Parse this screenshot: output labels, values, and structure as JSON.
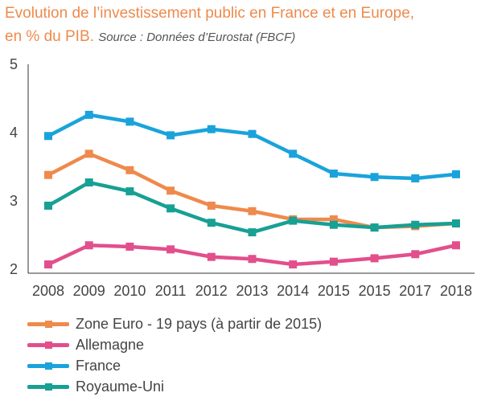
{
  "header": {
    "title_main": "Evolution de l’investissement public en France et en Europe,",
    "title_line2": "en % du PIB.",
    "source": "Source : Données d’Eurostat (FBCF)"
  },
  "chart_data": {
    "type": "line",
    "title": "Evolution de l’investissement public en France et en Europe, en % du PIB.",
    "source": "Source : Données d’Eurostat (FBCF)",
    "categories": [
      "2008",
      "2009",
      "2010",
      "2011",
      "2012",
      "2013",
      "2014",
      "2015",
      "2015",
      "2017",
      "2018"
    ],
    "yticks": [
      "5",
      "4",
      "3",
      "2"
    ],
    "ylim": [
      2,
      5
    ],
    "grid": false,
    "legend_position": "bottom",
    "series": [
      {
        "name": "Zone Euro - 19 pays (à partir de 2015)",
        "color": "#ee8a4c",
        "values": [
          3.38,
          3.69,
          3.45,
          3.15,
          2.93,
          2.85,
          2.73,
          2.73,
          2.61,
          2.63,
          2.67
        ]
      },
      {
        "name": "Allemagne",
        "color": "#e24f8c",
        "values": [
          2.07,
          2.35,
          2.33,
          2.29,
          2.18,
          2.15,
          2.07,
          2.11,
          2.16,
          2.22,
          2.35
        ]
      },
      {
        "name": "France",
        "color": "#1aa3db",
        "values": [
          3.95,
          4.26,
          4.16,
          3.96,
          4.05,
          3.98,
          3.69,
          3.4,
          3.35,
          3.33,
          3.39
        ]
      },
      {
        "name": "Royaume-Uni",
        "color": "#17a094",
        "values": [
          2.93,
          3.27,
          3.14,
          2.89,
          2.68,
          2.54,
          2.71,
          2.65,
          2.61,
          2.65,
          2.67
        ]
      }
    ]
  }
}
